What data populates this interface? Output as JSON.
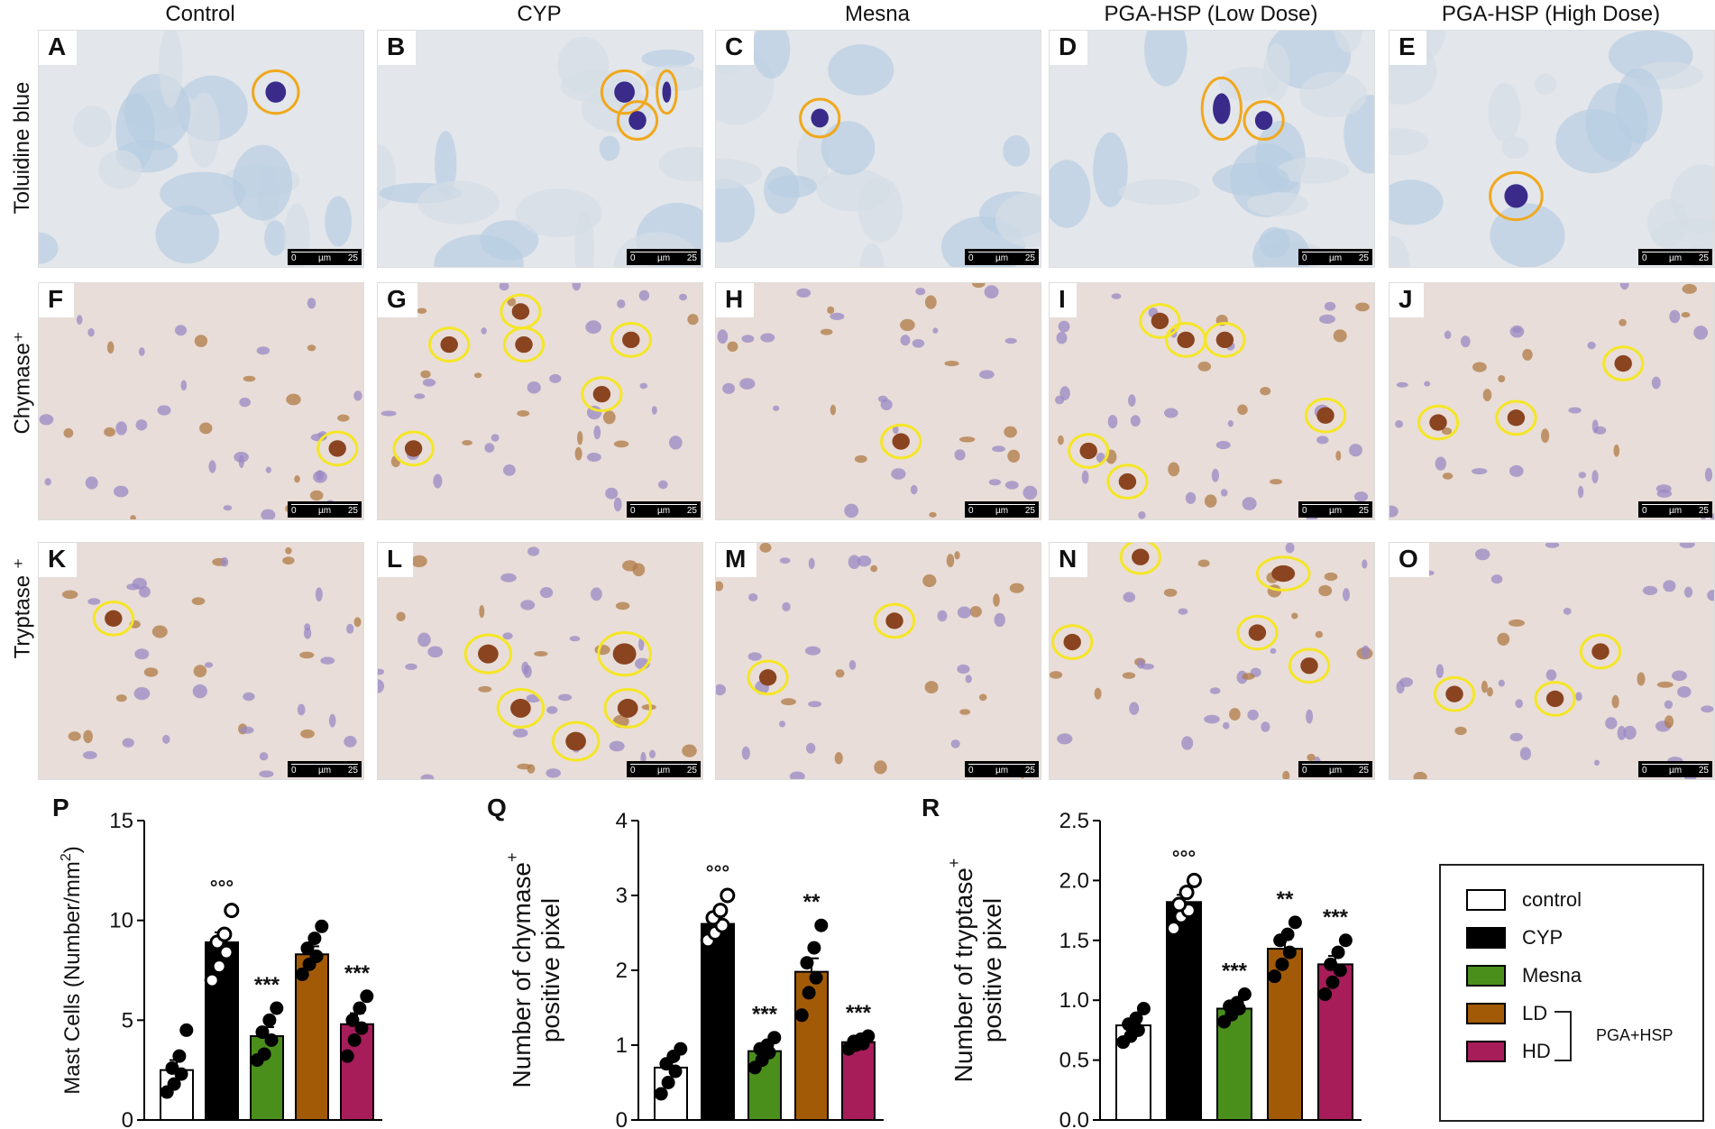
{
  "columns": [
    "Control",
    "CYP",
    "Mesna",
    "PGA-HSP (Low Dose)",
    "PGA-HSP (High Dose)"
  ],
  "rows": [
    "Toluidine blue",
    "Chymase⁺",
    "Tryptase ⁺"
  ],
  "panels": [
    [
      "A",
      "B",
      "C",
      "D",
      "E"
    ],
    [
      "F",
      "G",
      "H",
      "I",
      "J"
    ],
    [
      "K",
      "L",
      "M",
      "N",
      "O"
    ]
  ],
  "scalebar": {
    "start": "0",
    "unit": "µm",
    "end": "25"
  },
  "colors": {
    "control": "#ffffff",
    "CYP": "#000000",
    "Mesna": "#4a8f1c",
    "LD": "#a35a07",
    "HD": "#a61d5a",
    "circle_toluidine": "#f0a81c",
    "circle_ihc": "#f5e626",
    "bg_toluidine": "#e3e6ea",
    "bg_ihc": "#e8ddd8"
  },
  "legend": {
    "items": [
      {
        "key": "control",
        "label": "control"
      },
      {
        "key": "CYP",
        "label": "CYP"
      },
      {
        "key": "Mesna",
        "label": "Mesna"
      },
      {
        "key": "LD",
        "label": "LD"
      },
      {
        "key": "HD",
        "label": "HD"
      }
    ],
    "group_label": "PGA+HSP"
  },
  "chart_data": [
    {
      "type": "bar",
      "panel": "P",
      "categories": [
        "control",
        "CYP",
        "Mesna",
        "LD",
        "HD"
      ],
      "values": [
        2.5,
        8.9,
        4.2,
        8.3,
        4.8
      ],
      "sem": [
        0.5,
        0.5,
        0.45,
        0.4,
        0.55
      ],
      "points": [
        [
          1.4,
          1.8,
          2.3,
          2.6,
          3.2,
          4.5
        ],
        [
          7.0,
          7.7,
          8.4,
          8.9,
          9.3,
          10.5
        ],
        [
          3.0,
          3.3,
          4.0,
          4.4,
          5.0,
          5.6
        ],
        [
          7.3,
          7.8,
          8.2,
          8.6,
          9.1,
          9.7
        ],
        [
          3.2,
          4.0,
          4.6,
          5.0,
          5.6,
          6.2
        ]
      ],
      "annotations": [
        "",
        "°°°",
        "***",
        "",
        "***"
      ],
      "ylabel_main": "Mast Cells (Number/mm",
      "ylabel_sup": "2",
      "ylabel_end": ")",
      "ylim": [
        0,
        15
      ],
      "yticks": [
        "0",
        "5",
        "10",
        "15"
      ]
    },
    {
      "type": "bar",
      "panel": "Q",
      "categories": [
        "control",
        "CYP",
        "Mesna",
        "LD",
        "HD"
      ],
      "values": [
        0.7,
        2.62,
        0.92,
        1.98,
        1.04
      ],
      "sem": [
        0.1,
        0.1,
        0.08,
        0.18,
        0.05
      ],
      "points": [
        [
          0.35,
          0.5,
          0.65,
          0.75,
          0.85,
          0.95
        ],
        [
          2.4,
          2.5,
          2.6,
          2.7,
          2.8,
          3.0
        ],
        [
          0.7,
          0.8,
          0.9,
          0.95,
          1.0,
          1.1
        ],
        [
          1.4,
          1.7,
          1.9,
          2.1,
          2.3,
          2.6
        ],
        [
          0.95,
          1.0,
          1.02,
          1.05,
          1.08,
          1.12
        ]
      ],
      "annotations": [
        "",
        "°°°",
        "***",
        "**",
        "***"
      ],
      "ylabel_line1": "Number of chymase",
      "ylabel_line1_sup": "+",
      "ylabel_line2": "positive pixel",
      "ylim": [
        0,
        4
      ],
      "yticks": [
        "0",
        "1",
        "2",
        "3",
        "4"
      ]
    },
    {
      "type": "bar",
      "panel": "R",
      "categories": [
        "control",
        "CYP",
        "Mesna",
        "LD",
        "HD"
      ],
      "values": [
        0.79,
        1.82,
        0.93,
        1.43,
        1.3
      ],
      "sem": [
        0.05,
        0.06,
        0.04,
        0.08,
        0.07
      ],
      "points": [
        [
          0.65,
          0.7,
          0.75,
          0.8,
          0.85,
          0.93
        ],
        [
          1.6,
          1.7,
          1.75,
          1.8,
          1.9,
          2.0
        ],
        [
          0.82,
          0.88,
          0.93,
          0.95,
          0.98,
          1.05
        ],
        [
          1.2,
          1.3,
          1.4,
          1.5,
          1.55,
          1.65
        ],
        [
          1.05,
          1.15,
          1.25,
          1.3,
          1.4,
          1.5
        ]
      ],
      "annotations": [
        "",
        "°°°",
        "***",
        "**",
        "***"
      ],
      "ylabel_line1": "Number of tryptase",
      "ylabel_line1_sup": "+",
      "ylabel_line2": "positive pixel",
      "ylim": [
        0,
        2.5
      ],
      "yticks": [
        "0.0",
        "0.5",
        "1.0",
        "1.5",
        "2.0",
        "2.5"
      ]
    }
  ]
}
